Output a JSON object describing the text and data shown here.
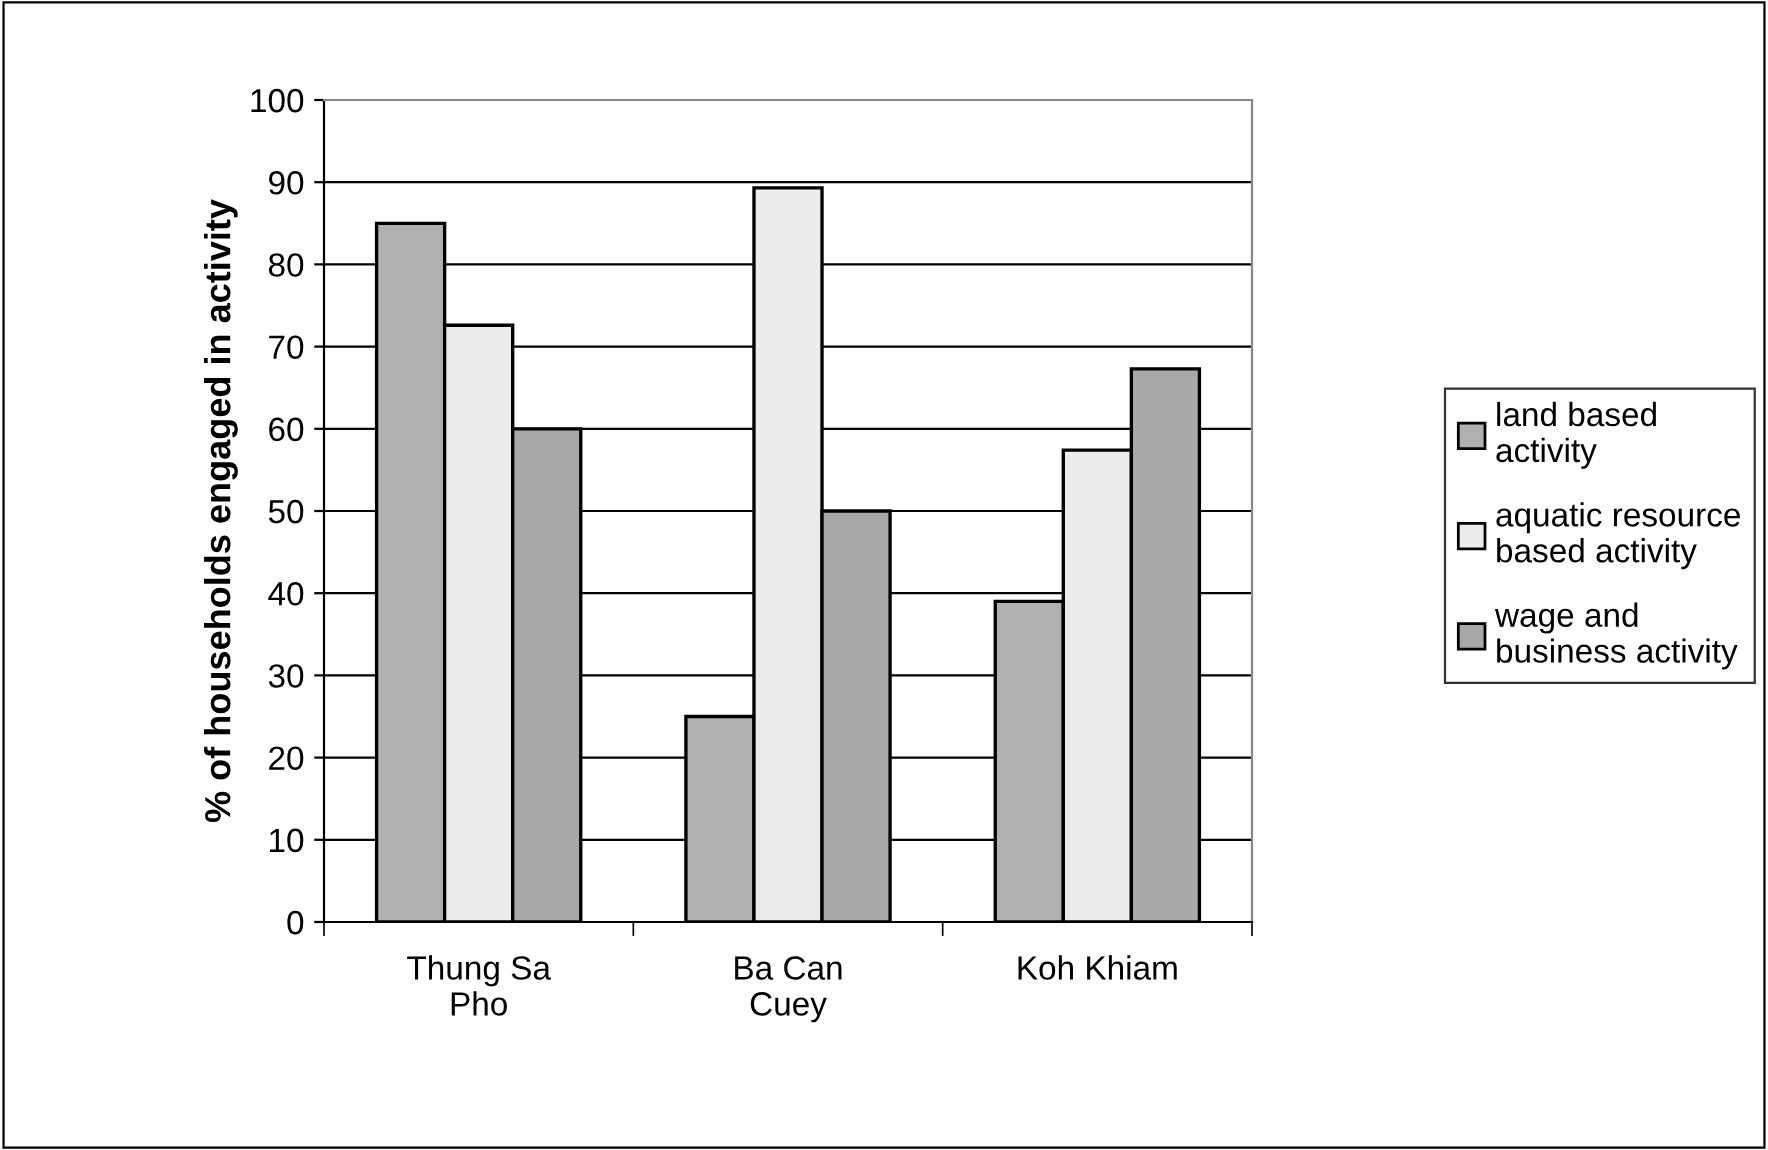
{
  "chart_data": {
    "type": "bar",
    "ylabel": "% of households engaged in activity",
    "categories": [
      "Thung Sa\nPho",
      "Ba Can\nCuey",
      "Koh Khiam"
    ],
    "series": [
      {
        "name": "land based\nactivity",
        "color": "#b0b0b0",
        "values": [
          85,
          25,
          39
        ]
      },
      {
        "name": "aquatic resource\nbased activity",
        "color": "#ececec",
        "values": [
          72.6,
          89.3,
          57.4
        ]
      },
      {
        "name": "wage and\nbusiness activity",
        "color": "#a8a8a8",
        "values": [
          60,
          50,
          67.3
        ]
      }
    ],
    "ylim": [
      0,
      100
    ],
    "yticks": [
      0,
      10,
      20,
      30,
      40,
      50,
      60,
      70,
      80,
      90,
      100
    ],
    "grid": "y",
    "legend": "right"
  }
}
